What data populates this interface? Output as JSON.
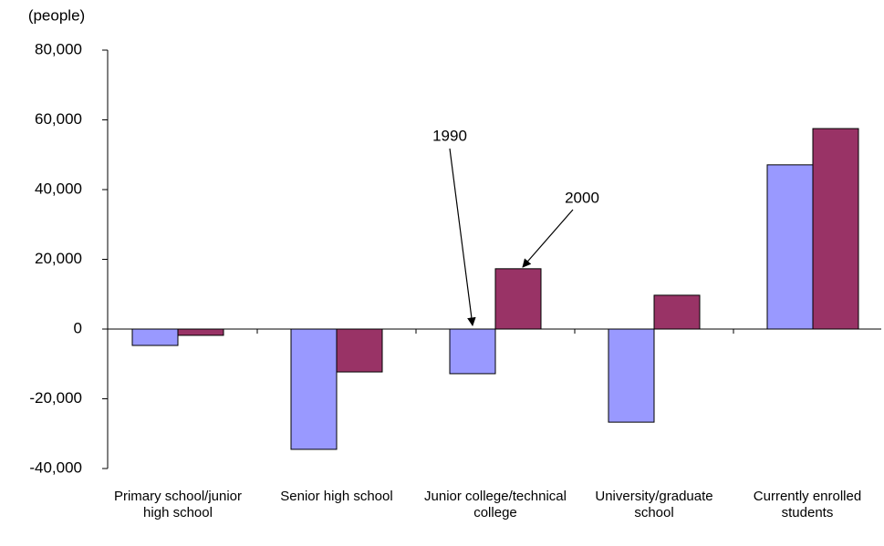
{
  "chart_data": {
    "type": "bar",
    "y_label": "(people)",
    "categories": [
      "Primary school/junior high school",
      "Senior high school",
      "Junior college/technical college",
      "University/graduate school",
      "Currently enrolled students"
    ],
    "series": [
      {
        "name": "1990",
        "color": "#9999ff",
        "values": [
          -4700,
          -34500,
          -12800,
          -26700,
          47100
        ]
      },
      {
        "name": "2000",
        "color": "#993366",
        "values": [
          -1800,
          -12300,
          17300,
          9700,
          57500
        ]
      }
    ],
    "ylim": [
      -40000,
      80000
    ],
    "yticks": [
      {
        "value": -40000,
        "label": "-40,000"
      },
      {
        "value": -20000,
        "label": "-20,000"
      },
      0,
      {
        "value": 20000,
        "label": "20,000"
      },
      {
        "value": 40000,
        "label": "40,000"
      },
      {
        "value": 60000,
        "label": "60,000"
      },
      {
        "value": 80000,
        "label": "80,000"
      }
    ]
  }
}
